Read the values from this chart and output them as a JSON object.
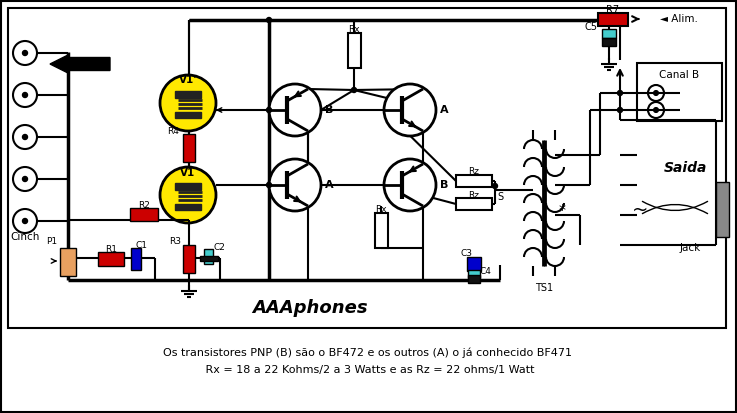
{
  "title": "AAAphones",
  "text_line1": "Os transistores PNP (B) são o BF472 e os outros (A) o já conhecido BF471",
  "text_line2": " Rx = 18 a 22 Kohms/2 a 3 Watts e as Rz = 22 ohms/1 Watt",
  "yellow": "#FFE800",
  "red": "#CC0000",
  "blue": "#0000CC",
  "cyan": "#44CCCC",
  "black": "#000000",
  "gray": "#888888",
  "orange": "#E8A060",
  "white": "#ffffff"
}
